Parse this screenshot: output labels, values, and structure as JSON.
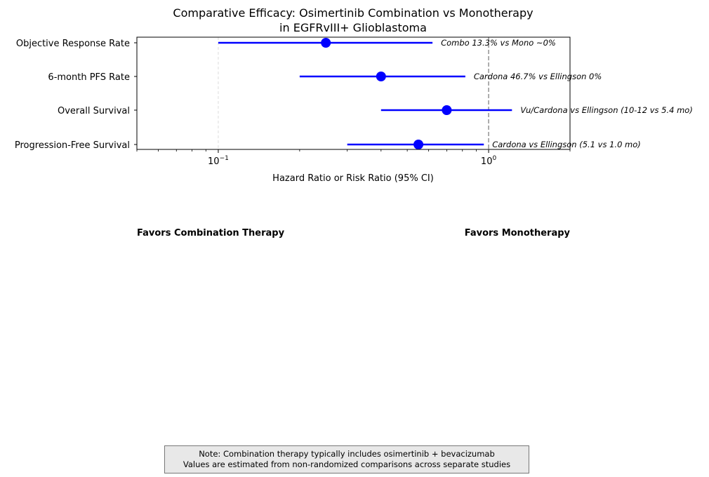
{
  "chart_data": {
    "type": "forest",
    "title_lines": [
      "Comparative Efficacy: Osimertinib Combination vs Monotherapy",
      "in EGFRvIII+ Glioblastoma"
    ],
    "xlabel": "Hazard Ratio or Risk Ratio (95% CI)",
    "xscale": "log",
    "xlim": [
      0.05,
      2.0
    ],
    "xticks": [
      {
        "value": 0.1,
        "base": "10",
        "exp": "−1"
      },
      {
        "value": 1.0,
        "base": "10",
        "exp": "0"
      }
    ],
    "reference_line": 1.0,
    "grid_line": 0.1,
    "rows": [
      {
        "label": "Objective Response Rate",
        "point": 0.25,
        "ci": [
          0.1,
          0.62
        ],
        "annotation": "Combo 13.3% vs Mono ~0%"
      },
      {
        "label": "6-month PFS Rate",
        "point": 0.4,
        "ci": [
          0.2,
          0.82
        ],
        "annotation": "Cardona 46.7% vs Ellingson 0%"
      },
      {
        "label": "Overall Survival",
        "point": 0.7,
        "ci": [
          0.4,
          1.22
        ],
        "annotation": "Vu/Cardona vs Ellingson (10-12 vs 5.4 mo)"
      },
      {
        "label": "Progression-Free Survival",
        "point": 0.55,
        "ci": [
          0.3,
          0.96
        ],
        "annotation": "Cardona vs Ellingson (5.1 vs 1.0 mo)"
      }
    ],
    "favors_left": "Favors Combination Therapy",
    "favors_right": "Favors Monotherapy",
    "colors": {
      "marker": "#0000ff",
      "reference": "#999999",
      "grid": "#dddddd"
    }
  },
  "note": {
    "line1": "Note: Combination therapy typically includes osimertinib + bevacizumab",
    "line2": "Values are estimated from non-randomized comparisons across separate studies"
  }
}
